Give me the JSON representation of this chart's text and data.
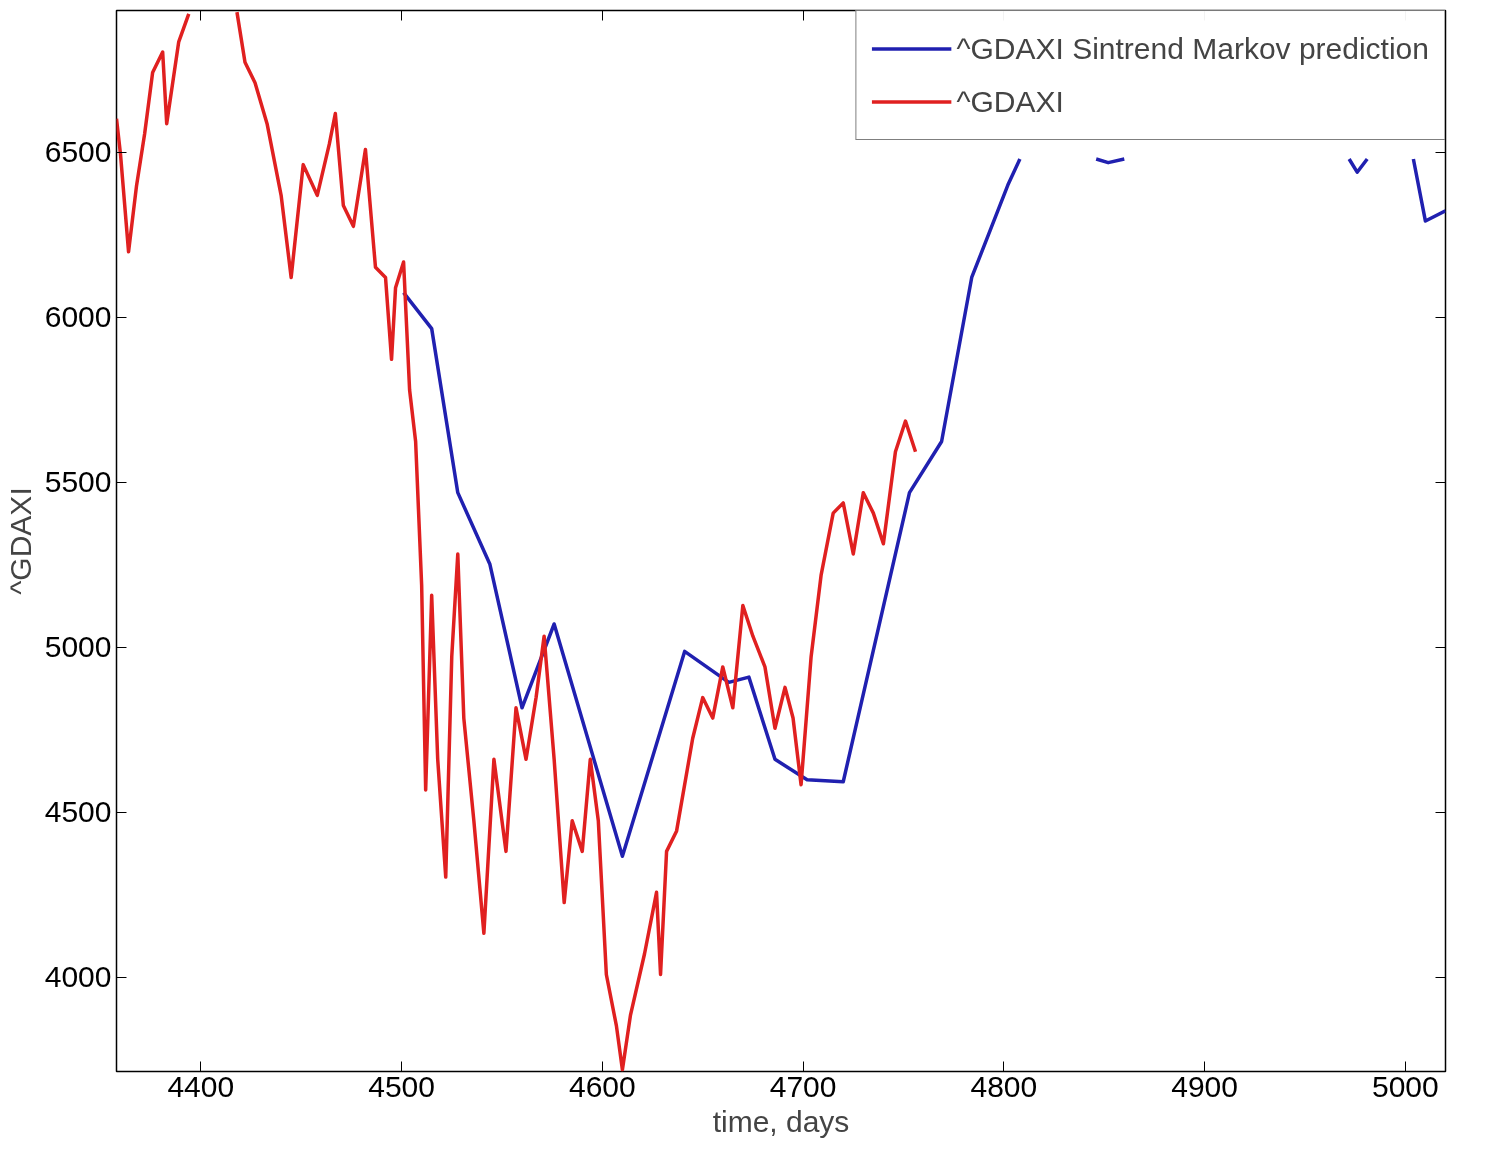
{
  "chart_data": {
    "type": "line",
    "xlabel": "time, days",
    "ylabel": "^GDAXI",
    "xlim": [
      4358,
      5020
    ],
    "ylim": [
      3715,
      6930
    ],
    "xticks": [
      4400,
      4500,
      4600,
      4700,
      4800,
      4900,
      5000
    ],
    "yticks": [
      4000,
      4500,
      5000,
      5500,
      6000,
      6500
    ],
    "grid": false,
    "legend": "top right",
    "line_style": "solid",
    "marker": "none",
    "series": [
      {
        "name": "^GDAXI Sintrend Markov prediction",
        "color": "#2020b0",
        "x": [
          4501,
          4515,
          4528,
          4544,
          4560,
          4576,
          4610,
          4641,
          4663,
          4673,
          4686,
          4702,
          4720,
          4753,
          4769,
          4784,
          4802,
          4808,
          4830,
          4846,
          4852,
          4860,
          4920,
          4972,
          4976,
          4981,
          4995,
          5004,
          5010,
          5020
        ],
        "values": [
          6075,
          5966,
          5469,
          5252,
          4817,
          5071,
          4367,
          4988,
          4894,
          4910,
          4661,
          4599,
          4593,
          5469,
          5624,
          6121,
          6401,
          6480,
          null,
          6480,
          6469,
          6480,
          null,
          6480,
          6440,
          6480,
          null,
          6480,
          6292,
          6323
        ]
      },
      {
        "name": "^GDAXI",
        "color": "#e02020",
        "x": [
          4358,
          4360,
          4364,
          4368,
          4372,
          4376,
          4381,
          4383,
          4389,
          4394,
          4406,
          4418,
          4422,
          4427,
          4433,
          4440,
          4445,
          4451,
          4458,
          4464,
          4467,
          4471,
          4476,
          4482,
          4487,
          4492,
          4495,
          4497,
          4501,
          4504,
          4507,
          4510,
          4512,
          4515,
          4518,
          4522,
          4525,
          4528,
          4531,
          4536,
          4541,
          4546,
          4552,
          4557,
          4562,
          4567,
          4571,
          4576,
          4581,
          4585,
          4590,
          4594,
          4598,
          4602,
          4607,
          4610,
          4614,
          4621,
          4627,
          4629,
          4632,
          4637,
          4645,
          4650,
          4655,
          4660,
          4665,
          4670,
          4675,
          4681,
          4686,
          4691,
          4695,
          4699,
          4704,
          4709,
          4715,
          4720,
          4725,
          4730,
          4735,
          4740,
          4746,
          4751,
          4756
        ],
        "values": [
          6602,
          6494,
          6199,
          6400,
          6556,
          6742,
          6804,
          6587,
          6835,
          6920,
          null,
          6925,
          6773,
          6711,
          6587,
          6370,
          6121,
          6463,
          6370,
          6525,
          6618,
          6339,
          6276,
          6509,
          6152,
          6121,
          5873,
          6090,
          6168,
          5780,
          5624,
          5189,
          4568,
          5158,
          4661,
          4304,
          4972,
          5283,
          4786,
          4475,
          4134,
          4661,
          4382,
          4817,
          4661,
          4848,
          5034,
          4661,
          4227,
          4475,
          4382,
          4661,
          4475,
          4009,
          3854,
          3720,
          3885,
          4071,
          4258,
          4009,
          4382,
          4444,
          4724,
          4848,
          4786,
          4941,
          4817,
          5127,
          5034,
          4941,
          4755,
          4879,
          4786,
          4584,
          4972,
          5220,
          5407,
          5438,
          5283,
          5469,
          5407,
          5314,
          5593,
          5686,
          5593
        ]
      }
    ]
  }
}
